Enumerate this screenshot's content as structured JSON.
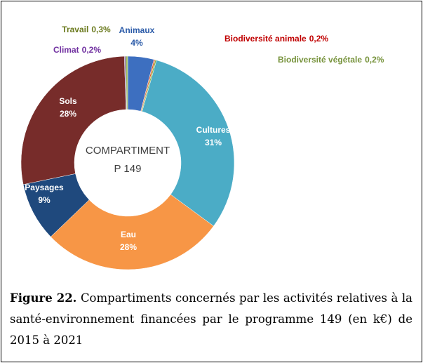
{
  "chart_data": {
    "type": "pie",
    "center_label": [
      "COMPARTIMENT",
      "P 149"
    ],
    "categories": [
      "Animaux",
      "Biodiversité animale",
      "Biodiversité végétale",
      "Cultures",
      "Eau",
      "Paysages",
      "Sols",
      "Climat",
      "Travail"
    ],
    "values": [
      4,
      0.2,
      0.2,
      31,
      28,
      9,
      28,
      0.2,
      0.3
    ],
    "value_labels": [
      "4%",
      "0,2%",
      "0,2%",
      "31%",
      "28%",
      "9%",
      "28%",
      "0,2%",
      "0,3%"
    ],
    "colors": [
      "#3d6fc0",
      "#e0592a",
      "#8fae3e",
      "#4bacc6",
      "#f79646",
      "#1f497d",
      "#772c2a",
      "#7f5fa0",
      "#9bbb59"
    ],
    "label_colors": [
      "#2a5aa8",
      "#c00000",
      "#77933c",
      "#ffffff",
      "#ffffff",
      "#ffffff",
      "#ffffff",
      "#7030a0",
      "#6b7a1e"
    ]
  },
  "caption": {
    "label": "Figure 22.",
    "text": "Compartiments concernés par les activités relatives à la santé-environnement financées par le programme 149 (en  k€) de 2015 à 2021"
  }
}
